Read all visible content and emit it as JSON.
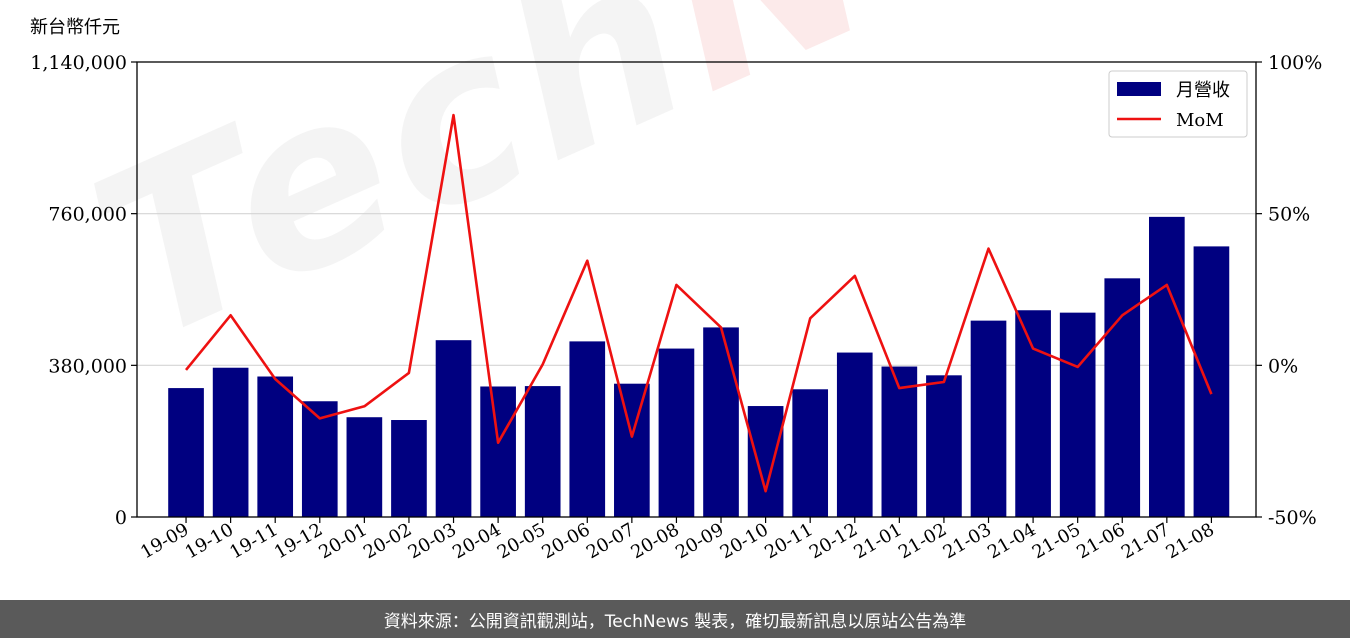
{
  "chart_data": {
    "type": "bar",
    "unit_label": "新台幣仟元",
    "categories": [
      "19-09",
      "19-10",
      "19-11",
      "19-12",
      "20-01",
      "20-02",
      "20-03",
      "20-04",
      "20-05",
      "20-06",
      "20-07",
      "20-08",
      "20-09",
      "20-10",
      "20-11",
      "20-12",
      "21-01",
      "21-02",
      "21-03",
      "21-04",
      "21-05",
      "21-06",
      "21-07",
      "21-08"
    ],
    "series": [
      {
        "name": "月營收",
        "kind": "bar",
        "axis": "left",
        "color": "#000080",
        "values": [
          323000,
          374000,
          352000,
          290000,
          250000,
          243000,
          443000,
          327000,
          328000,
          440000,
          334000,
          422000,
          475000,
          278000,
          320000,
          412000,
          377000,
          355000,
          492000,
          518000,
          512000,
          598000,
          752000,
          678000
        ]
      },
      {
        "name": "MoM",
        "kind": "line",
        "axis": "right",
        "color": "#ee1111",
        "values": [
          -1.5,
          16.5,
          -4.5,
          -17.5,
          -13.5,
          -2.5,
          82.5,
          -25.5,
          0.3,
          34.5,
          -23.5,
          26.5,
          12.5,
          -41.5,
          15.5,
          29.5,
          -7.5,
          -5.5,
          38.5,
          5.5,
          -0.5,
          16.5,
          26.5,
          -9.5
        ]
      }
    ],
    "left_axis": {
      "ylim": [
        0,
        1140000
      ],
      "ticks": [
        0,
        380000,
        760000,
        1140000
      ],
      "tick_labels": [
        "0",
        "380,000",
        "760,000",
        "1,140,000"
      ]
    },
    "right_axis": {
      "ylim": [
        -50,
        100
      ],
      "ticks": [
        -50,
        0,
        50,
        100
      ],
      "tick_labels": [
        "-50%",
        "0%",
        "50%",
        "100%"
      ]
    },
    "grid": "horizontal",
    "legend": {
      "placement": "top-right",
      "entries": [
        "月營收",
        "MoM"
      ]
    }
  },
  "watermark": {
    "part1": "Tech",
    "part2": "News"
  },
  "footer": {
    "text": "資料來源：公開資訊觀測站，TechNews 製表，確切最新訊息以原站公告為準"
  }
}
